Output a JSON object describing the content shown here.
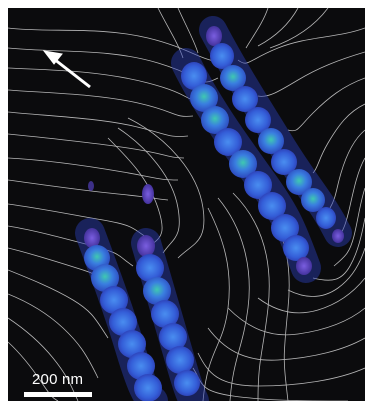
{
  "image": {
    "scale_bar": {
      "label": "200 nm"
    },
    "colors": {
      "background": "#0b0b0d",
      "contour": "#d8d8d8",
      "chain_blue": "#3a62d8",
      "chain_teal": "#2fb0a4",
      "chain_violet": "#6a4ed0",
      "arrow": "#ffffff"
    },
    "icons": {
      "direction": "field-direction-arrow-icon"
    }
  }
}
